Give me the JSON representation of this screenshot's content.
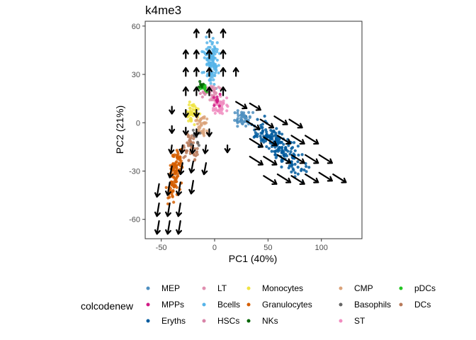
{
  "chart_data": {
    "type": "scatter",
    "title": "k4me3",
    "xlabel": "PC1 (40%)",
    "ylabel": "PC2 (21%)",
    "xlim": [
      -65,
      138
    ],
    "ylim": [
      -72,
      63
    ],
    "x_ticks": [
      -50,
      0,
      50,
      100
    ],
    "y_ticks": [
      -60,
      -30,
      0,
      30,
      60
    ],
    "grid": false,
    "legend": {
      "title": "colcodenew",
      "placement": "bottom",
      "entries": [
        {
          "name": "MEP",
          "color": "#4e8fc0"
        },
        {
          "name": "MPPs",
          "color": "#d11a85"
        },
        {
          "name": "Eryths",
          "color": "#005a9e"
        },
        {
          "name": "LT",
          "color": "#e08fb0"
        },
        {
          "name": "Bcells",
          "color": "#56b4e9"
        },
        {
          "name": "HSCs",
          "color": "#d884a8"
        },
        {
          "name": "Monocytes",
          "color": "#f0e442"
        },
        {
          "name": "Granulocytes",
          "color": "#d55e00"
        },
        {
          "name": "NKs",
          "color": "#006400"
        },
        {
          "name": "CMP",
          "color": "#dba37a"
        },
        {
          "name": "Basophils",
          "color": "#666666"
        },
        {
          "name": "ST",
          "color": "#f08cc0"
        },
        {
          "name": "pDCs",
          "color": "#22c522"
        },
        {
          "name": "DCs",
          "color": "#b87a5a"
        }
      ]
    },
    "clusters": [
      {
        "name": "Bcells",
        "center": [
          -3,
          38
        ],
        "spread": [
          6,
          12
        ],
        "count": 110
      },
      {
        "name": "Eryths",
        "center": [
          60,
          -15
        ],
        "spread": [
          26,
          7
        ],
        "rotation": -30,
        "count": 190
      },
      {
        "name": "MEP",
        "center": [
          25,
          2
        ],
        "spread": [
          8,
          5
        ],
        "count": 45
      },
      {
        "name": "Granulocytes",
        "center": [
          -37,
          -32
        ],
        "spread": [
          5,
          15
        ],
        "rotation": -12,
        "count": 110
      },
      {
        "name": "DCs",
        "center": [
          -22,
          -15
        ],
        "spread": [
          5,
          9
        ],
        "count": 45
      },
      {
        "name": "Monocytes",
        "center": [
          -20,
          6
        ],
        "spread": [
          5,
          7
        ],
        "count": 45
      },
      {
        "name": "CMP",
        "center": [
          -12,
          -2
        ],
        "spread": [
          6,
          7
        ],
        "count": 40
      },
      {
        "name": "ST",
        "center": [
          5,
          10
        ],
        "spread": [
          7,
          6
        ],
        "count": 40
      },
      {
        "name": "LT",
        "center": [
          0,
          18
        ],
        "spread": [
          6,
          5
        ],
        "count": 20
      },
      {
        "name": "HSCs",
        "center": [
          -8,
          20
        ],
        "spread": [
          5,
          4
        ],
        "count": 18
      },
      {
        "name": "MPPs",
        "center": [
          2,
          14
        ],
        "spread": [
          4,
          4
        ],
        "count": 10
      },
      {
        "name": "pDCs",
        "center": [
          -10,
          22
        ],
        "spread": [
          5,
          3
        ],
        "count": 16
      },
      {
        "name": "NKs",
        "center": [
          -12,
          24
        ],
        "spread": [
          3,
          2
        ],
        "count": 6
      },
      {
        "name": "Basophils",
        "center": [
          -18,
          -8
        ],
        "spread": [
          4,
          5
        ],
        "count": 12
      }
    ],
    "arrows": [
      {
        "x": -17,
        "y": 53,
        "dx": 0,
        "dy": 5
      },
      {
        "x": -5,
        "y": 53,
        "dx": 0,
        "dy": 5
      },
      {
        "x": 8,
        "y": 53,
        "dx": 0,
        "dy": 5
      },
      {
        "x": -27,
        "y": 40,
        "dx": 0,
        "dy": 5
      },
      {
        "x": -17,
        "y": 40,
        "dx": 0,
        "dy": 5
      },
      {
        "x": -5,
        "y": 40,
        "dx": 0,
        "dy": 5
      },
      {
        "x": 8,
        "y": 40,
        "dx": 0,
        "dy": 5
      },
      {
        "x": -27,
        "y": 29,
        "dx": 0,
        "dy": 5
      },
      {
        "x": -17,
        "y": 29,
        "dx": 0,
        "dy": 5
      },
      {
        "x": -5,
        "y": 29,
        "dx": 0,
        "dy": 5
      },
      {
        "x": 8,
        "y": 29,
        "dx": 0,
        "dy": 5
      },
      {
        "x": 20,
        "y": 29,
        "dx": 0,
        "dy": 5
      },
      {
        "x": -27,
        "y": 17,
        "dx": 0,
        "dy": 5
      },
      {
        "x": -17,
        "y": 17,
        "dx": 0,
        "dy": 5
      },
      {
        "x": -5,
        "y": 17,
        "dx": 0,
        "dy": 5
      },
      {
        "x": 8,
        "y": 17,
        "dx": 0,
        "dy": 5
      },
      {
        "x": -40,
        "y": 10,
        "dx": 0,
        "dy": -4
      },
      {
        "x": -27,
        "y": 8,
        "dx": 0,
        "dy": -4
      },
      {
        "x": -17,
        "y": 8,
        "dx": 0,
        "dy": -4
      },
      {
        "x": -40,
        "y": -2,
        "dx": 0,
        "dy": -4
      },
      {
        "x": -27,
        "y": -3,
        "dx": 0,
        "dy": -4
      },
      {
        "x": -17,
        "y": -4,
        "dx": 0,
        "dy": -4
      },
      {
        "x": -5,
        "y": -4,
        "dx": 0,
        "dy": -4
      },
      {
        "x": -40,
        "y": -14,
        "dx": -1,
        "dy": -5
      },
      {
        "x": -30,
        "y": -14,
        "dx": -1,
        "dy": -5
      },
      {
        "x": -20,
        "y": -14,
        "dx": -1,
        "dy": -5
      },
      {
        "x": -8,
        "y": -14,
        "dx": -1,
        "dy": -5
      },
      {
        "x": 12,
        "y": -14,
        "dx": 0,
        "dy": -4
      },
      {
        "x": -40,
        "y": -27,
        "dx": -2,
        "dy": -7
      },
      {
        "x": -30,
        "y": -25,
        "dx": -2,
        "dy": -7
      },
      {
        "x": -20,
        "y": -24,
        "dx": -2,
        "dy": -7
      },
      {
        "x": -8,
        "y": -25,
        "dx": -2,
        "dy": -7
      },
      {
        "x": -52,
        "y": -38,
        "dx": -2,
        "dy": -8
      },
      {
        "x": -42,
        "y": -37,
        "dx": -2,
        "dy": -8
      },
      {
        "x": -32,
        "y": -37,
        "dx": -2,
        "dy": -8
      },
      {
        "x": -20,
        "y": -36,
        "dx": -2,
        "dy": -8
      },
      {
        "x": -52,
        "y": -50,
        "dx": -2,
        "dy": -8
      },
      {
        "x": -42,
        "y": -50,
        "dx": -2,
        "dy": -8
      },
      {
        "x": -32,
        "y": -50,
        "dx": -2,
        "dy": -8
      },
      {
        "x": -52,
        "y": -61,
        "dx": -2,
        "dy": -8
      },
      {
        "x": -42,
        "y": -61,
        "dx": -2,
        "dy": -8
      },
      {
        "x": -32,
        "y": -61,
        "dx": -2,
        "dy": -8
      },
      {
        "x": 20,
        "y": 13,
        "dx": 10,
        "dy": -4
      },
      {
        "x": 33,
        "y": 12,
        "dx": 10,
        "dy": -4
      },
      {
        "x": 30,
        "y": 1,
        "dx": 12,
        "dy": -5
      },
      {
        "x": 43,
        "y": 2,
        "dx": 12,
        "dy": -5
      },
      {
        "x": 56,
        "y": 4,
        "dx": 12,
        "dy": -5
      },
      {
        "x": 70,
        "y": 2,
        "dx": 12,
        "dy": -5
      },
      {
        "x": 33,
        "y": -10,
        "dx": 12,
        "dy": -5
      },
      {
        "x": 46,
        "y": -9,
        "dx": 12,
        "dy": -5
      },
      {
        "x": 59,
        "y": -8,
        "dx": 12,
        "dy": -5
      },
      {
        "x": 72,
        "y": -8,
        "dx": 12,
        "dy": -5
      },
      {
        "x": 85,
        "y": -8,
        "dx": 12,
        "dy": -5
      },
      {
        "x": 33,
        "y": -21,
        "dx": 12,
        "dy": -5
      },
      {
        "x": 46,
        "y": -21,
        "dx": 12,
        "dy": -5
      },
      {
        "x": 59,
        "y": -20,
        "dx": 12,
        "dy": -5
      },
      {
        "x": 72,
        "y": -20,
        "dx": 12,
        "dy": -5
      },
      {
        "x": 85,
        "y": -20,
        "dx": 12,
        "dy": -5
      },
      {
        "x": 98,
        "y": -20,
        "dx": 12,
        "dy": -5
      },
      {
        "x": 46,
        "y": -33,
        "dx": 12,
        "dy": -5
      },
      {
        "x": 59,
        "y": -32,
        "dx": 12,
        "dy": -5
      },
      {
        "x": 72,
        "y": -33,
        "dx": 12,
        "dy": -5
      },
      {
        "x": 85,
        "y": -32,
        "dx": 12,
        "dy": -5
      },
      {
        "x": 98,
        "y": -31,
        "dx": 12,
        "dy": -5
      },
      {
        "x": 111,
        "y": -32,
        "dx": 12,
        "dy": -5
      }
    ]
  }
}
